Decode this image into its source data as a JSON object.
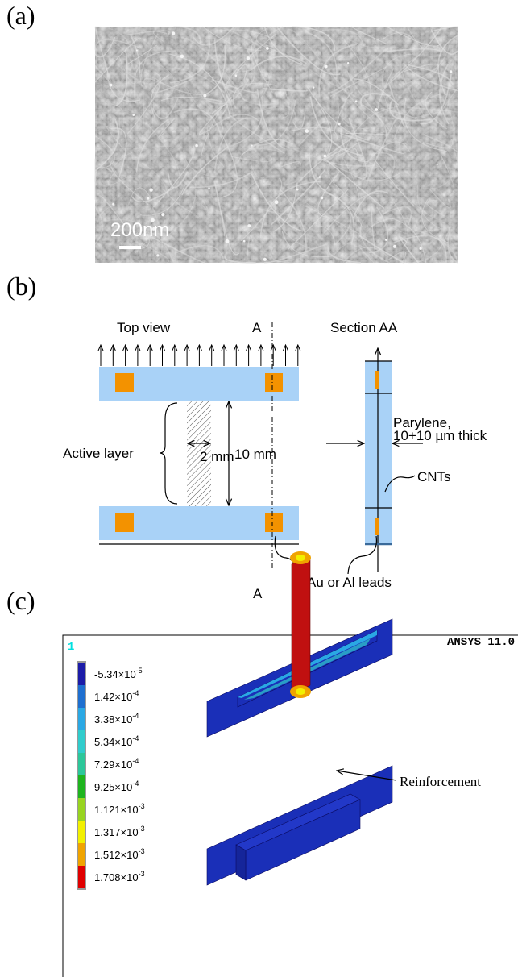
{
  "panel_a": {
    "label": "(a)",
    "scale_bar": "200nm"
  },
  "panel_b": {
    "label": "(b)",
    "top_view": "Top view",
    "section_mark_top": "A",
    "section_mark_bottom": "A",
    "section_title": "Section AA",
    "parylene": "Parylene,",
    "thickness": "10+10 µm thick",
    "active_layer": "Active layer",
    "width": "2 mm",
    "length": "10 mm",
    "cnts": "CNTs",
    "leads": "Au or Al leads"
  },
  "panel_c": {
    "label": "(c)",
    "window_number": "1",
    "software": "ANSYS 11.0",
    "legend": [
      {
        "base": "-5.34×10",
        "exponent": "-5",
        "color": "#1c1ca8"
      },
      {
        "base": "1.42×10",
        "exponent": "-4",
        "color": "#1e6fd0"
      },
      {
        "base": "3.38×10",
        "exponent": "-4",
        "color": "#2aa8e4"
      },
      {
        "base": "5.34×10",
        "exponent": "-4",
        "color": "#30cccc"
      },
      {
        "base": "7.29×10",
        "exponent": "-4",
        "color": "#2cc79a"
      },
      {
        "base": "9.25×10",
        "exponent": "-4",
        "color": "#1eb41e"
      },
      {
        "base": "1.121×10",
        "exponent": "-3",
        "color": "#98d420"
      },
      {
        "base": "1.317×10",
        "exponent": "-3",
        "color": "#f2f000"
      },
      {
        "base": "1.512×10",
        "exponent": "-3",
        "color": "#f0a400"
      },
      {
        "base": "1.708×10",
        "exponent": "-3",
        "color": "#e00000"
      }
    ],
    "callout": "Reinforcement"
  }
}
